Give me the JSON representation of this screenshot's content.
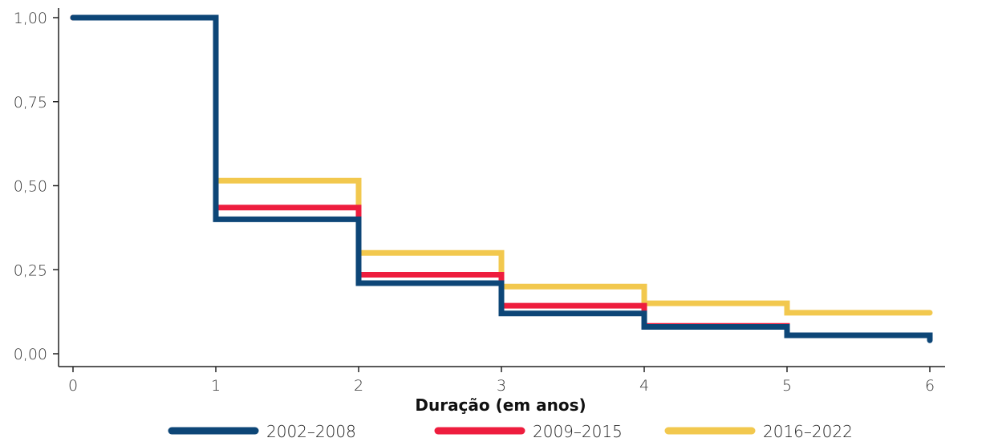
{
  "chart_data": {
    "type": "line",
    "step": true,
    "xlabel": "Duração (em anos)",
    "ylabel": "",
    "xlim": [
      0,
      6
    ],
    "ylim": [
      0,
      1
    ],
    "x_ticks": [
      "0",
      "1",
      "2",
      "3",
      "4",
      "5",
      "6"
    ],
    "y_ticks": [
      "0,00",
      "0,25",
      "0,50",
      "0,75",
      "1,00"
    ],
    "legend_position": "bottom",
    "grid": false,
    "x": [
      0,
      1,
      2,
      3,
      4,
      5,
      6
    ],
    "series": [
      {
        "name": "2002–2008",
        "color": "#0d4677",
        "values": [
          1.0,
          0.4,
          0.21,
          0.12,
          0.08,
          0.055,
          0.04
        ]
      },
      {
        "name": "2009–2015",
        "color": "#ee1d3e",
        "values": [
          1.0,
          0.435,
          0.235,
          0.143,
          0.083,
          0.055,
          0.055
        ]
      },
      {
        "name": "2016–2022",
        "color": "#f2c84e",
        "values": [
          1.0,
          0.515,
          0.3,
          0.2,
          0.15,
          0.122,
          0.122
        ]
      }
    ]
  }
}
